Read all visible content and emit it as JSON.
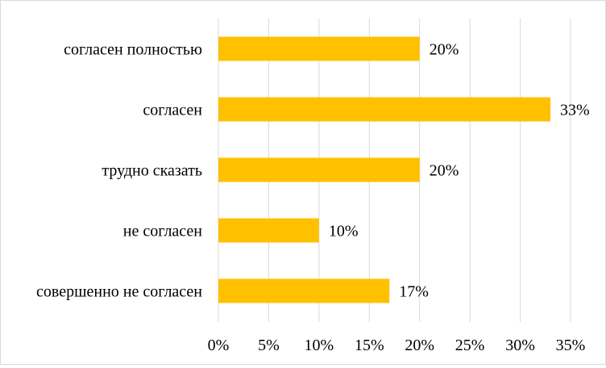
{
  "chart_data": {
    "type": "bar",
    "orientation": "horizontal",
    "categories": [
      "согласен полностью",
      "согласен",
      "трудно сказать",
      "не согласен",
      "совершенно не согласен"
    ],
    "series": [
      {
        "values": [
          20,
          33,
          20,
          10,
          17
        ]
      }
    ],
    "data_labels": [
      "20%",
      "33%",
      "20%",
      "10%",
      "17%"
    ],
    "xlim": [
      0,
      35
    ],
    "x_ticks": [
      0,
      5,
      10,
      15,
      20,
      25,
      30,
      35
    ],
    "x_tick_labels": [
      "0%",
      "5%",
      "10%",
      "15%",
      "20%",
      "25%",
      "30%",
      "35%"
    ],
    "grid": "vertical",
    "legend": "none",
    "colors": {
      "bar": "#FFC000",
      "grid": "#d9d9d9",
      "frame": "#d9d9d9"
    }
  }
}
